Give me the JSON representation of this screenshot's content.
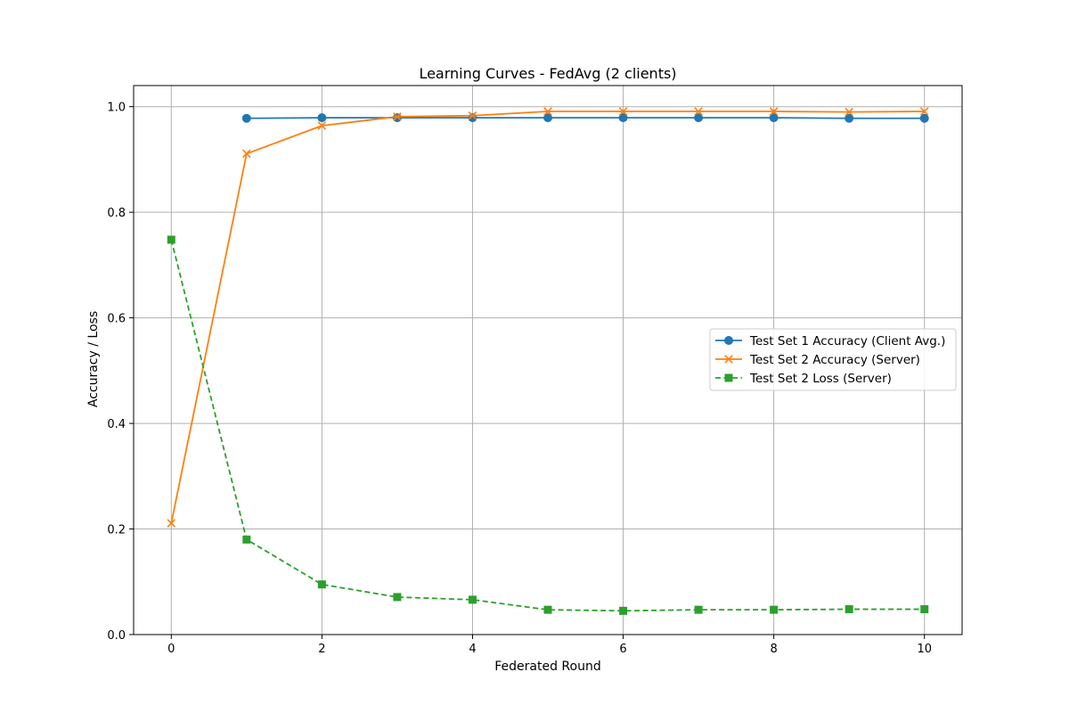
{
  "chart_data": {
    "type": "line",
    "title": "Learning Curves - FedAvg (2 clients)",
    "xlabel": "Federated Round",
    "ylabel": "Accuracy / Loss",
    "xlim": [
      -0.5,
      10.5
    ],
    "ylim": [
      0.0,
      1.04
    ],
    "xticks": [
      0,
      2,
      4,
      6,
      8,
      10
    ],
    "xtick_labels": [
      "0",
      "2",
      "4",
      "6",
      "8",
      "10"
    ],
    "yticks": [
      0.0,
      0.2,
      0.4,
      0.6,
      0.8,
      1.0
    ],
    "ytick_labels": [
      "0.0",
      "0.2",
      "0.4",
      "0.6",
      "0.8",
      "1.0"
    ],
    "grid": true,
    "legend_position": "center-right",
    "series": [
      {
        "name": "Test Set 1 Accuracy (Client Avg.)",
        "color": "#1f77b4",
        "marker": "circle",
        "linestyle": "solid",
        "x": [
          1,
          2,
          3,
          4,
          5,
          6,
          7,
          8,
          9,
          10
        ],
        "values": [
          0.978,
          0.979,
          0.979,
          0.979,
          0.979,
          0.979,
          0.979,
          0.979,
          0.978,
          0.978
        ]
      },
      {
        "name": "Test Set 2 Accuracy (Server)",
        "color": "#ff7f0e",
        "marker": "x",
        "linestyle": "solid",
        "x": [
          0,
          1,
          2,
          3,
          4,
          5,
          6,
          7,
          8,
          9,
          10
        ],
        "values": [
          0.211,
          0.911,
          0.964,
          0.981,
          0.983,
          0.991,
          0.991,
          0.991,
          0.991,
          0.99,
          0.991
        ]
      },
      {
        "name": "Test Set 2 Loss (Server)",
        "color": "#2ca02c",
        "marker": "square",
        "linestyle": "dashed",
        "x": [
          0,
          1,
          2,
          3,
          4,
          5,
          6,
          7,
          8,
          9,
          10
        ],
        "values": [
          0.748,
          0.18,
          0.095,
          0.071,
          0.066,
          0.047,
          0.045,
          0.047,
          0.047,
          0.048,
          0.048
        ]
      }
    ]
  }
}
